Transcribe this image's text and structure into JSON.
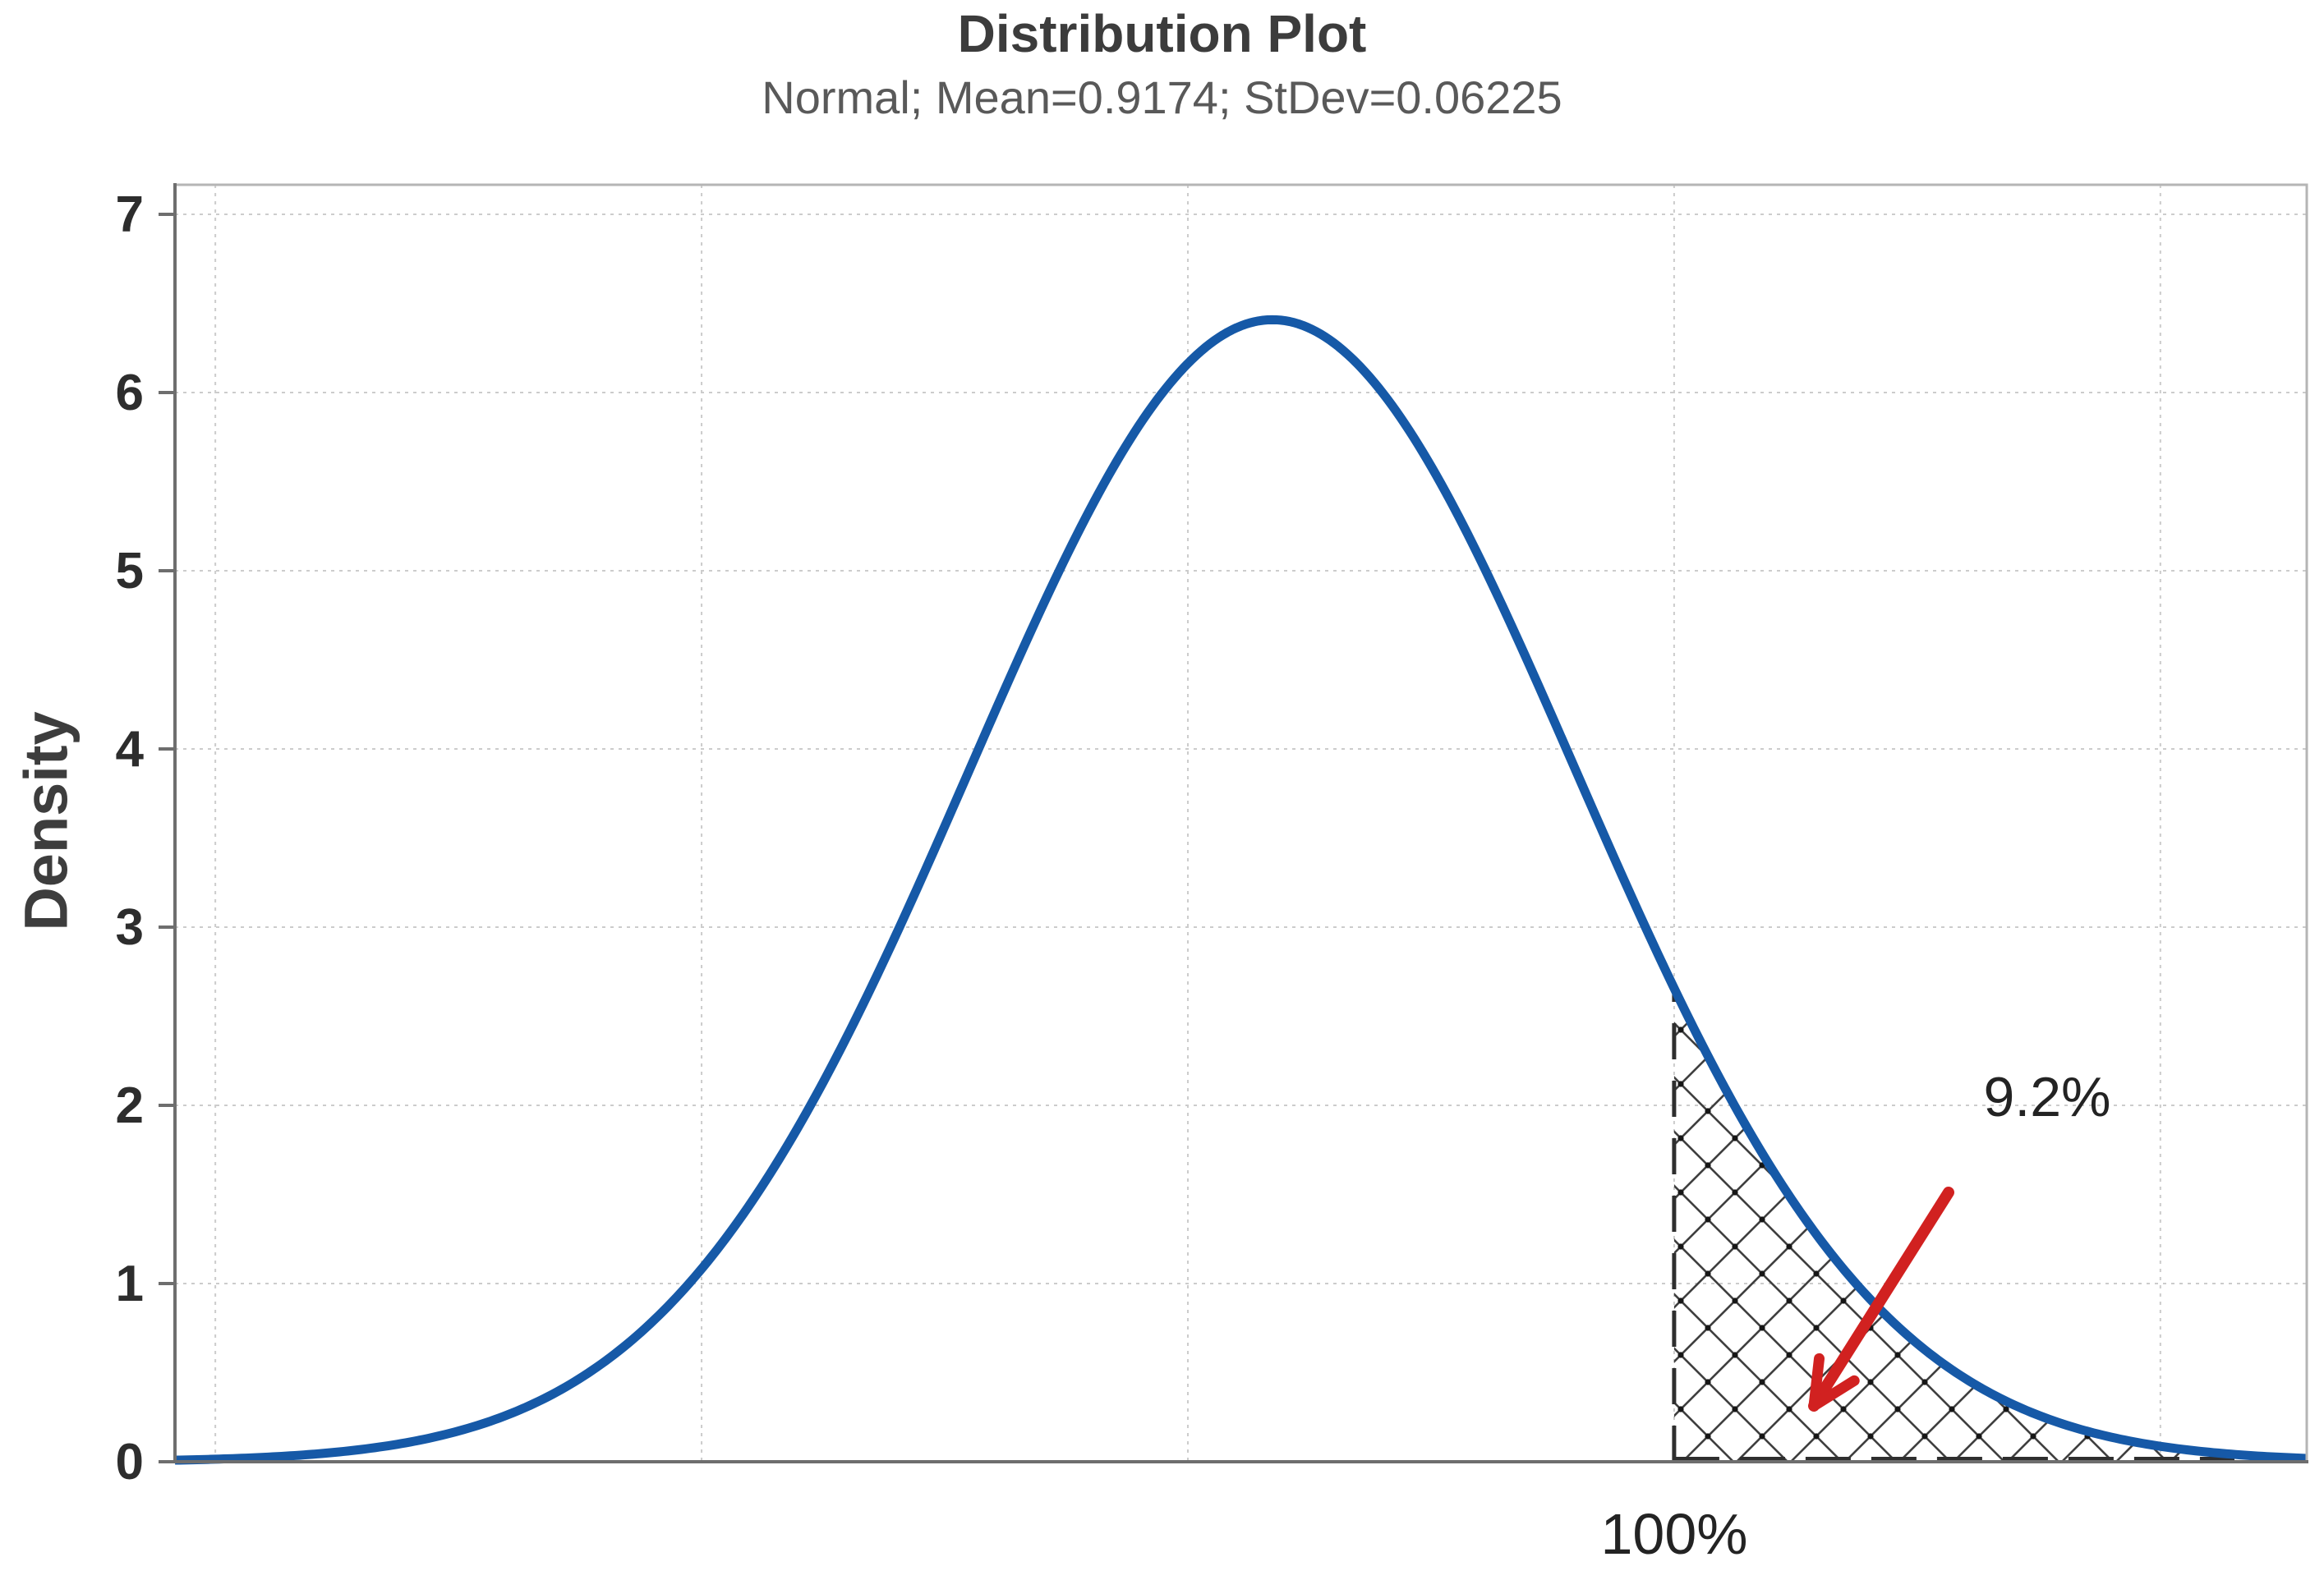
{
  "figure": {
    "title": "Distribution Plot",
    "subtitle": "Normal; Mean=0.9174; StDev=0.06225"
  },
  "y_axis": {
    "label": "Density",
    "tick_labels": [
      "0",
      "1",
      "2",
      "3",
      "4",
      "5",
      "6",
      "7"
    ]
  },
  "x_axis": {
    "boundary_label": "100%"
  },
  "annotation": {
    "probability_label": "9.2%"
  },
  "colors": {
    "curve_blue": "#1659a7",
    "arrow_red": "#d12120",
    "axis_dark": "#6e6e6e",
    "frame_light": "#b5b5b5",
    "gridline": "#cccccc",
    "hatch_line": "#3f3f3f",
    "hatch_dot": "#161616",
    "dashed_boundary": "#2e2e2e",
    "tick_text": "#2d2d2d",
    "title_text": "#3c3c3c",
    "subtitle_text": "#595959"
  },
  "chart_data": {
    "type": "area",
    "title": "Distribution Plot",
    "subtitle": "Normal; Mean=0.9174; StDev=0.06225",
    "distribution": "Normal",
    "mean": 0.9174,
    "stdev": 0.06225,
    "peak_density": 6.409,
    "xlabel": "",
    "ylabel": "Density",
    "xlim": [
      0.6917,
      1.1301
    ],
    "ylim": [
      0,
      7.166
    ],
    "yticks": [
      0,
      1,
      2,
      3,
      4,
      5,
      6,
      7
    ],
    "x_gridlines": [
      0.7,
      0.8,
      0.9,
      1.0,
      1.1
    ],
    "grid": true,
    "legend": "none",
    "shaded_region": {
      "side": "right-tail",
      "from_x": 1.0,
      "boundary_label": "100%",
      "probability": 0.092,
      "probability_label": "9.2%",
      "style": "crosshatch"
    },
    "curve_samples": {
      "x": [
        0.7,
        0.75,
        0.8,
        0.85,
        0.9,
        0.9174,
        0.95,
        1.0,
        1.05,
        1.1,
        1.13
      ],
      "density": [
        0.014,
        0.172,
        1.082,
        3.565,
        6.164,
        6.409,
        5.588,
        2.657,
        0.663,
        0.087,
        0.019
      ]
    }
  }
}
